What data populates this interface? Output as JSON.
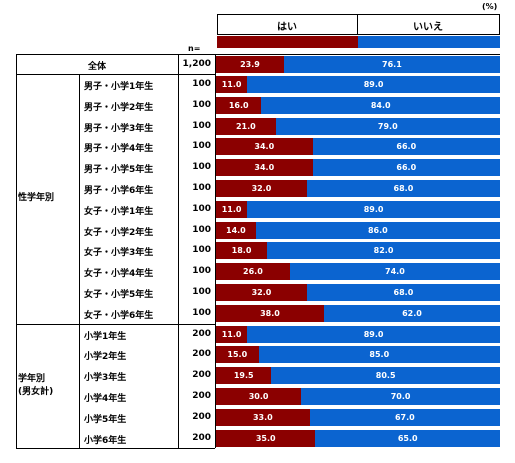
{
  "chart_data": {
    "type": "bar",
    "stacked": true,
    "orientation": "horizontal",
    "unit": "(%)",
    "n_label": "n=",
    "series": [
      {
        "name": "はい",
        "color": "#8b0000"
      },
      {
        "name": "いいえ",
        "color": "#0b64d0"
      }
    ],
    "rows": [
      {
        "group": "",
        "label": "全体",
        "n": "1,200",
        "yes": 23.9,
        "no": 76.1
      },
      {
        "group": "性学年別",
        "label": "男子・小学1年生",
        "n": "100",
        "yes": 11.0,
        "no": 89.0
      },
      {
        "group": "性学年別",
        "label": "男子・小学2年生",
        "n": "100",
        "yes": 16.0,
        "no": 84.0
      },
      {
        "group": "性学年別",
        "label": "男子・小学3年生",
        "n": "100",
        "yes": 21.0,
        "no": 79.0
      },
      {
        "group": "性学年別",
        "label": "男子・小学4年生",
        "n": "100",
        "yes": 34.0,
        "no": 66.0
      },
      {
        "group": "性学年別",
        "label": "男子・小学5年生",
        "n": "100",
        "yes": 34.0,
        "no": 66.0
      },
      {
        "group": "性学年別",
        "label": "男子・小学6年生",
        "n": "100",
        "yes": 32.0,
        "no": 68.0
      },
      {
        "group": "性学年別",
        "label": "女子・小学1年生",
        "n": "100",
        "yes": 11.0,
        "no": 89.0
      },
      {
        "group": "性学年別",
        "label": "女子・小学2年生",
        "n": "100",
        "yes": 14.0,
        "no": 86.0
      },
      {
        "group": "性学年別",
        "label": "女子・小学3年生",
        "n": "100",
        "yes": 18.0,
        "no": 82.0
      },
      {
        "group": "性学年別",
        "label": "女子・小学4年生",
        "n": "100",
        "yes": 26.0,
        "no": 74.0
      },
      {
        "group": "性学年別",
        "label": "女子・小学5年生",
        "n": "100",
        "yes": 32.0,
        "no": 68.0
      },
      {
        "group": "性学年別",
        "label": "女子・小学6年生",
        "n": "100",
        "yes": 38.0,
        "no": 62.0
      },
      {
        "group": "学年別 (男女計)",
        "label": "小学1年生",
        "n": "200",
        "yes": 11.0,
        "no": 89.0
      },
      {
        "group": "学年別 (男女計)",
        "label": "小学2年生",
        "n": "200",
        "yes": 15.0,
        "no": 85.0
      },
      {
        "group": "学年別 (男女計)",
        "label": "小学3年生",
        "n": "200",
        "yes": 19.5,
        "no": 80.5
      },
      {
        "group": "学年別 (男女計)",
        "label": "小学4年生",
        "n": "200",
        "yes": 30.0,
        "no": 70.0
      },
      {
        "group": "学年別 (男女計)",
        "label": "小学5年生",
        "n": "200",
        "yes": 33.0,
        "no": 67.0
      },
      {
        "group": "学年別 (男女計)",
        "label": "小学6年生",
        "n": "200",
        "yes": 35.0,
        "no": 65.0
      }
    ],
    "groups": [
      {
        "label": "性学年別",
        "line1": "性学年別",
        "line2": ""
      },
      {
        "label": "学年別 (男女計)",
        "line1": "学年別",
        "line2": "(男女計)"
      }
    ]
  }
}
